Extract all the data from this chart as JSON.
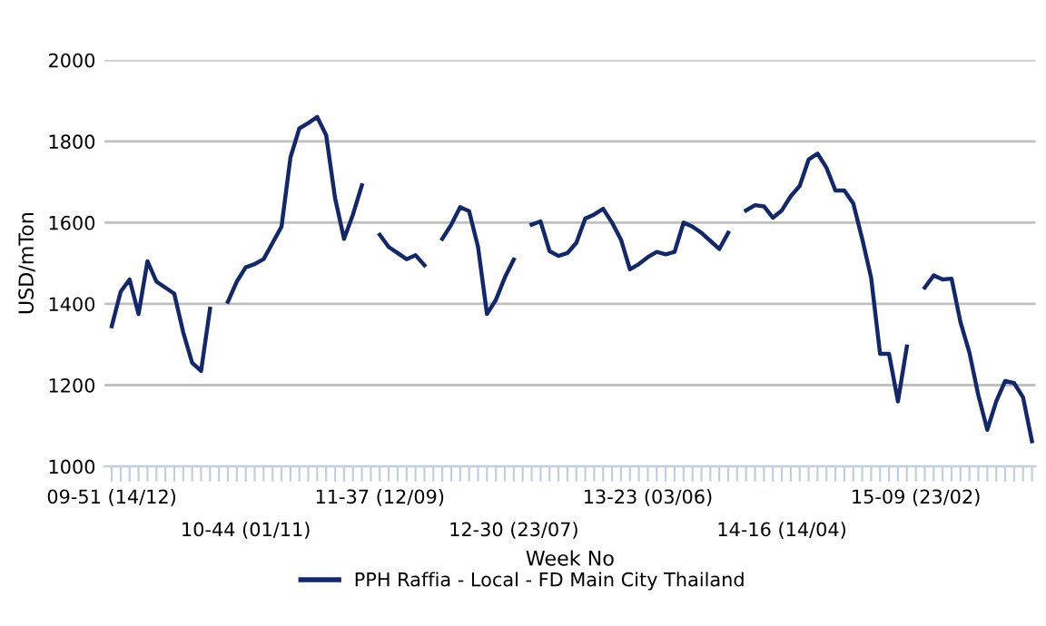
{
  "chart_data": {
    "type": "line",
    "xlabel": "Week No",
    "ylabel": "USD/mTon",
    "categories": [
      "09-51 (14/12)",
      null,
      null,
      null,
      null,
      null,
      null,
      null,
      null,
      null,
      null,
      null,
      null,
      null,
      null,
      "10-44 (01/11)",
      null,
      null,
      null,
      null,
      null,
      null,
      null,
      null,
      null,
      null,
      null,
      null,
      null,
      null,
      "11-37 (12/09)",
      null,
      null,
      null,
      null,
      null,
      null,
      null,
      null,
      null,
      null,
      null,
      null,
      null,
      null,
      "12-30 (23/07)",
      null,
      null,
      null,
      null,
      null,
      null,
      null,
      null,
      null,
      null,
      null,
      null,
      null,
      null,
      "13-23 (03/06)",
      null,
      null,
      null,
      null,
      null,
      null,
      null,
      null,
      null,
      null,
      null,
      null,
      null,
      null,
      "14-16 (14/04)",
      null,
      null,
      null,
      null,
      null,
      null,
      null,
      null,
      null,
      null,
      null,
      null,
      null,
      null,
      "15-09 (23/02)",
      null,
      null,
      null,
      null,
      null,
      null,
      null,
      null,
      null,
      null,
      null,
      null,
      null
    ],
    "series": [
      {
        "name": "PPH Raffia - Local - FD Main City Thailand",
        "color": "#13286b",
        "values": [
          1345,
          1430,
          1460,
          1375,
          1505,
          1455,
          1440,
          1425,
          1330,
          1255,
          1235,
          1388,
          null,
          1405,
          1455,
          1490,
          1498,
          1510,
          1550,
          1590,
          1760,
          1832,
          1845,
          1860,
          1815,
          1660,
          1560,
          1620,
          1692,
          null,
          1570,
          1540,
          1525,
          1510,
          1520,
          1495,
          null,
          1560,
          1595,
          1638,
          1628,
          1540,
          1375,
          1410,
          1465,
          1509,
          null,
          1595,
          1603,
          1530,
          1518,
          1525,
          1550,
          1610,
          1620,
          1634,
          1600,
          1558,
          1485,
          1498,
          1515,
          1528,
          1522,
          1528,
          1600,
          1590,
          1575,
          1555,
          1535,
          1575,
          null,
          1630,
          1643,
          1640,
          1612,
          1630,
          1665,
          1690,
          1755,
          1770,
          1735,
          1679,
          1679,
          1647,
          1560,
          1464,
          1277,
          1277,
          1160,
          1295,
          null,
          1440,
          1470,
          1460,
          1462,
          1355,
          1280,
          1175,
          1090,
          1160,
          1210,
          1205,
          1170,
          1062
        ]
      }
    ],
    "ylim": [
      1000,
      2000
    ],
    "yticks": [
      1000,
      1200,
      1400,
      1600,
      1800,
      2000
    ],
    "grid": "y",
    "legend": "bottom",
    "marker": "none",
    "line_style": "solid"
  }
}
